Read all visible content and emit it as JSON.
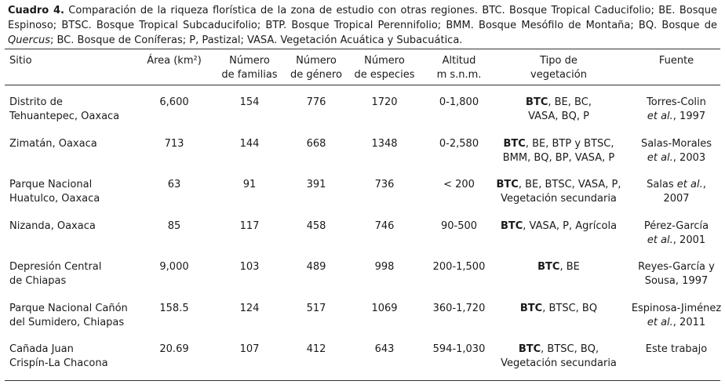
{
  "caption": [
    {
      "text": "Cuadro 4.",
      "bold": true
    },
    " Comparación de la riqueza florística de la zona de estudio con otras regiones. BTC. Bosque Tropical Caducifolio; BE. Bosque Espinoso; BTSC. Bosque Tropical Subcaducifolio; BTP. Bosque Tropical Perennifolio; BMM. Bosque Mesófilo de Montaña; BQ. Bosque de ",
    {
      "text": "Quercus",
      "italic": true
    },
    "; BC. Bosque de Coníferas; P, Pastizal; VASA. Vegetación Acuática y Subacuática."
  ],
  "table": {
    "headers": [
      [
        "Sitio"
      ],
      [
        "Área (km²)"
      ],
      [
        "Número",
        "de familias"
      ],
      [
        "Número",
        "de género"
      ],
      [
        "Número",
        "de especies"
      ],
      [
        "Altitud",
        "m s.n.m."
      ],
      [
        "Tipo de",
        "vegetación"
      ],
      [
        "Fuente"
      ]
    ],
    "rows": [
      [
        [
          "Distrito de",
          "Tehuantepec, Oaxaca"
        ],
        [
          "6,600"
        ],
        [
          "154"
        ],
        [
          "776"
        ],
        [
          "1720"
        ],
        [
          "0-1,800"
        ],
        [
          [
            {
              "text": "BTC",
              "bold": true
            },
            ", BE, BC,"
          ],
          "VASA, BQ, P"
        ],
        [
          "Torres-Colin",
          [
            {
              "text": "et al.",
              "italic": true
            },
            ", 1997"
          ]
        ]
      ],
      [
        [
          "Zimatán, Oaxaca"
        ],
        [
          "713"
        ],
        [
          "144"
        ],
        [
          "668"
        ],
        [
          "1348"
        ],
        [
          "0-2,580"
        ],
        [
          [
            {
              "text": "BTC",
              "bold": true
            },
            ", BE, BTP y BTSC,"
          ],
          "BMM, BQ, BP, VASA, P"
        ],
        [
          "Salas-Morales",
          [
            {
              "text": "et al.",
              "italic": true
            },
            ", 2003"
          ]
        ]
      ],
      [
        [
          "Parque Nacional",
          "Huatulco, Oaxaca"
        ],
        [
          "63"
        ],
        [
          "91"
        ],
        [
          "391"
        ],
        [
          "736"
        ],
        [
          "< 200"
        ],
        [
          [
            {
              "text": "BTC",
              "bold": true
            },
            ", BE, BTSC, VASA, P,"
          ],
          "Vegetación secundaria"
        ],
        [
          [
            "Salas ",
            {
              "text": "et al.",
              "italic": true
            },
            ","
          ],
          "2007"
        ]
      ],
      [
        [
          "Nizanda, Oaxaca"
        ],
        [
          "85"
        ],
        [
          "117"
        ],
        [
          "458"
        ],
        [
          "746"
        ],
        [
          "90-500"
        ],
        [
          [
            {
              "text": "BTC",
              "bold": true
            },
            ", VASA, P, Agrícola"
          ]
        ],
        [
          "Pérez-García",
          [
            {
              "text": "et al.",
              "italic": true
            },
            ", 2001"
          ]
        ]
      ],
      [
        [
          "Depresión Central",
          "de Chiapas"
        ],
        [
          "9,000"
        ],
        [
          "103"
        ],
        [
          "489"
        ],
        [
          "998"
        ],
        [
          "200-1,500"
        ],
        [
          [
            {
              "text": "BTC",
              "bold": true
            },
            ", BE"
          ]
        ],
        [
          "Reyes-García y",
          "Sousa, 1997"
        ]
      ],
      [
        [
          "Parque Nacional Cañón",
          "del Sumidero, Chiapas"
        ],
        [
          "158.5"
        ],
        [
          "124"
        ],
        [
          "517"
        ],
        [
          "1069"
        ],
        [
          "360-1,720"
        ],
        [
          [
            {
              "text": "BTC",
              "bold": true
            },
            ", BTSC, BQ"
          ]
        ],
        [
          "Espinosa-Jiménez",
          [
            {
              "text": "et al.",
              "italic": true
            },
            ", 2011"
          ]
        ]
      ],
      [
        [
          "Cañada Juan",
          "Crispín-La Chacona"
        ],
        [
          "20.69"
        ],
        [
          "107"
        ],
        [
          "412"
        ],
        [
          "643"
        ],
        [
          "594-1,030"
        ],
        [
          [
            {
              "text": "BTC",
              "bold": true
            },
            ", BTSC, BQ,"
          ],
          "Vegetación secundaria"
        ],
        [
          "Este trabajo"
        ]
      ]
    ]
  }
}
